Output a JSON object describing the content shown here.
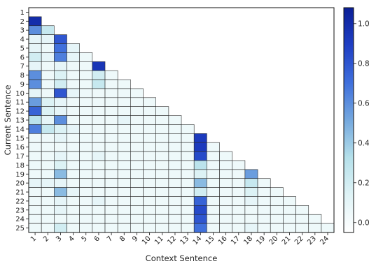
{
  "chart_data": {
    "type": "heatmap",
    "title": "",
    "xlabel": "Context Sentence",
    "ylabel": "Current Sentence",
    "x_categories": [
      "1",
      "2",
      "3",
      "4",
      "5",
      "6",
      "7",
      "8",
      "9",
      "10",
      "11",
      "12",
      "13",
      "14",
      "15",
      "16",
      "17",
      "18",
      "19",
      "20",
      "21",
      "22",
      "23",
      "24"
    ],
    "y_categories": [
      "1",
      "2",
      "3",
      "4",
      "5",
      "6",
      "7",
      "8",
      "9",
      "10",
      "11",
      "12",
      "13",
      "14",
      "15",
      "16",
      "17",
      "18",
      "19",
      "20",
      "21",
      "22",
      "23",
      "24",
      "25"
    ],
    "colorbar": {
      "ticks": [
        0.0,
        0.2,
        0.4,
        0.6,
        0.8,
        1.0
      ],
      "tick_labels": [
        "0.0",
        "0.2",
        "0.4",
        "0.6",
        "0.8",
        "1.0"
      ],
      "range": [
        -0.05,
        1.08
      ]
    },
    "colorscale": [
      "#ffffff",
      "#dff3f6",
      "#b5e0ea",
      "#74a8de",
      "#3f6fdc",
      "#1f3fc4",
      "#0b1f96"
    ],
    "layout": "lower-triangular: row r has cells for context sentences 1..r-1",
    "values": [
      [],
      [
        1.0
      ],
      [
        0.6,
        0.25
      ],
      [
        0.1,
        0.1,
        0.8
      ],
      [
        0.1,
        0.05,
        0.7,
        0.1
      ],
      [
        0.2,
        0.1,
        0.65,
        0.1,
        0.05
      ],
      [
        0.1,
        0.05,
        0.1,
        0.05,
        0.05,
        0.95
      ],
      [
        0.6,
        0.05,
        0.15,
        0.05,
        0.05,
        0.2,
        0.05
      ],
      [
        0.6,
        0.05,
        0.2,
        0.05,
        0.05,
        0.25,
        0.05,
        0.05
      ],
      [
        0.1,
        0.05,
        0.8,
        0.1,
        0.05,
        0.05,
        0.05,
        0.05,
        0.05
      ],
      [
        0.55,
        0.15,
        0.1,
        0.05,
        0.05,
        0.05,
        0.05,
        0.05,
        0.05,
        0.05
      ],
      [
        0.75,
        0.15,
        0.1,
        0.05,
        0.05,
        0.05,
        0.05,
        0.05,
        0.05,
        0.05,
        0.05
      ],
      [
        0.3,
        0.1,
        0.6,
        0.05,
        0.05,
        0.05,
        0.05,
        0.1,
        0.05,
        0.05,
        0.05,
        0.05
      ],
      [
        0.65,
        0.25,
        0.15,
        0.1,
        0.05,
        0.05,
        0.05,
        0.05,
        0.05,
        0.05,
        0.05,
        0.05,
        0.05
      ],
      [
        0.05,
        0.05,
        0.1,
        0.05,
        0.05,
        0.05,
        0.05,
        0.05,
        0.05,
        0.05,
        0.05,
        0.05,
        0.05,
        0.92
      ],
      [
        0.05,
        0.05,
        0.05,
        0.05,
        0.05,
        0.05,
        0.05,
        0.05,
        0.05,
        0.05,
        0.05,
        0.05,
        0.05,
        0.92,
        0.05
      ],
      [
        0.05,
        0.05,
        0.1,
        0.05,
        0.05,
        0.1,
        0.05,
        0.05,
        0.05,
        0.05,
        0.05,
        0.05,
        0.05,
        0.85,
        0.05,
        0.05
      ],
      [
        0.05,
        0.05,
        0.15,
        0.05,
        0.05,
        0.05,
        0.05,
        0.05,
        0.05,
        0.05,
        0.05,
        0.05,
        0.05,
        0.3,
        0.05,
        0.05,
        0.05
      ],
      [
        0.05,
        0.05,
        0.45,
        0.05,
        0.05,
        0.05,
        0.05,
        0.05,
        0.05,
        0.05,
        0.05,
        0.05,
        0.05,
        0.15,
        0.05,
        0.05,
        0.05,
        0.55
      ],
      [
        0.1,
        0.1,
        0.1,
        0.05,
        0.05,
        0.05,
        0.05,
        0.05,
        0.05,
        0.05,
        0.05,
        0.05,
        0.05,
        0.45,
        0.05,
        0.05,
        0.05,
        0.25,
        0.05
      ],
      [
        0.05,
        0.05,
        0.45,
        0.1,
        0.05,
        0.05,
        0.05,
        0.05,
        0.05,
        0.05,
        0.05,
        0.05,
        0.05,
        0.2,
        0.05,
        0.05,
        0.05,
        0.15,
        0.05,
        0.05
      ],
      [
        0.05,
        0.05,
        0.1,
        0.05,
        0.05,
        0.1,
        0.05,
        0.05,
        0.05,
        0.05,
        0.05,
        0.05,
        0.05,
        0.75,
        0.05,
        0.05,
        0.05,
        0.1,
        0.05,
        0.05,
        0.05
      ],
      [
        0.05,
        0.05,
        0.1,
        0.05,
        0.05,
        0.05,
        0.05,
        0.05,
        0.05,
        0.05,
        0.05,
        0.05,
        0.05,
        0.85,
        0.05,
        0.05,
        0.05,
        0.05,
        0.05,
        0.05,
        0.05,
        0.05
      ],
      [
        0.05,
        0.05,
        0.05,
        0.05,
        0.05,
        0.05,
        0.05,
        0.05,
        0.05,
        0.05,
        0.05,
        0.05,
        0.05,
        0.8,
        0.05,
        0.05,
        0.05,
        0.05,
        0.05,
        0.05,
        0.05,
        0.05,
        0.05
      ],
      [
        0.05,
        0.05,
        0.2,
        0.05,
        0.05,
        0.05,
        0.05,
        0.05,
        0.05,
        0.05,
        0.05,
        0.05,
        0.05,
        0.7,
        0.05,
        0.05,
        0.05,
        0.1,
        0.05,
        0.05,
        0.05,
        0.05,
        0.05,
        0.05
      ]
    ]
  }
}
